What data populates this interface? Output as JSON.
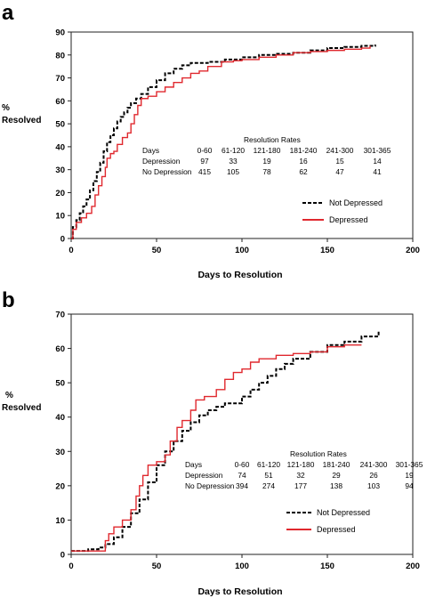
{
  "chart_data": [
    {
      "panel": "a",
      "type": "line",
      "xlabel": "Days to Resolution",
      "ylabel_line1": "%",
      "ylabel_line2": "Resolved",
      "xlim": [
        0,
        200
      ],
      "ylim": [
        0,
        90
      ],
      "xticks": [
        0,
        50,
        100,
        150,
        200
      ],
      "yticks": [
        0,
        10,
        20,
        30,
        40,
        50,
        60,
        70,
        80,
        90
      ],
      "series": [
        {
          "name": "Not Depressed",
          "color": "#000000",
          "dash": "dashed",
          "points": [
            [
              0,
              0
            ],
            [
              1,
              5
            ],
            [
              3,
              8
            ],
            [
              5,
              11
            ],
            [
              7,
              14
            ],
            [
              9,
              17
            ],
            [
              11,
              21
            ],
            [
              13,
              25
            ],
            [
              15,
              29
            ],
            [
              17,
              33
            ],
            [
              19,
              38
            ],
            [
              21,
              42
            ],
            [
              23,
              45
            ],
            [
              25,
              48
            ],
            [
              27,
              51
            ],
            [
              29,
              53
            ],
            [
              31,
              55
            ],
            [
              33,
              57
            ],
            [
              35,
              59
            ],
            [
              38,
              61
            ],
            [
              41,
              63
            ],
            [
              45,
              66
            ],
            [
              50,
              69
            ],
            [
              55,
              72
            ],
            [
              60,
              74
            ],
            [
              65,
              75.5
            ],
            [
              70,
              76.5
            ],
            [
              80,
              77
            ],
            [
              90,
              78
            ],
            [
              100,
              79
            ],
            [
              110,
              80
            ],
            [
              120,
              80.5
            ],
            [
              130,
              81
            ],
            [
              140,
              82
            ],
            [
              150,
              83
            ],
            [
              160,
              83.5
            ],
            [
              170,
              84
            ],
            [
              178,
              84.5
            ]
          ]
        },
        {
          "name": "Depressed",
          "color": "#e0282e",
          "dash": "solid",
          "points": [
            [
              0,
              0
            ],
            [
              1,
              4
            ],
            [
              3,
              7
            ],
            [
              6,
              9
            ],
            [
              9,
              11
            ],
            [
              12,
              14
            ],
            [
              14,
              19
            ],
            [
              16,
              23
            ],
            [
              18,
              27
            ],
            [
              20,
              31
            ],
            [
              21,
              35
            ],
            [
              23,
              37
            ],
            [
              25,
              38
            ],
            [
              27,
              41
            ],
            [
              30,
              44
            ],
            [
              33,
              46
            ],
            [
              35,
              50
            ],
            [
              37,
              54
            ],
            [
              39,
              58
            ],
            [
              41,
              61
            ],
            [
              45,
              62
            ],
            [
              50,
              64
            ],
            [
              55,
              66
            ],
            [
              60,
              68
            ],
            [
              65,
              70
            ],
            [
              70,
              72
            ],
            [
              75,
              73
            ],
            [
              80,
              75
            ],
            [
              88,
              77
            ],
            [
              95,
              77.5
            ],
            [
              100,
              78
            ],
            [
              110,
              79
            ],
            [
              120,
              80
            ],
            [
              130,
              81
            ],
            [
              140,
              81.5
            ],
            [
              150,
              82
            ],
            [
              160,
              82.5
            ],
            [
              170,
              83
            ],
            [
              175,
              84
            ]
          ]
        }
      ],
      "table": {
        "title": "Resolution Rates",
        "header": [
          "Days",
          "0-60",
          "61-120",
          "121-180",
          "181-240",
          "241-300",
          "301-365"
        ],
        "rows": [
          [
            "Depression",
            "97",
            "33",
            "19",
            "16",
            "15",
            "14"
          ],
          [
            "No Depression",
            "415",
            "105",
            "78",
            "62",
            "47",
            "41"
          ]
        ]
      }
    },
    {
      "panel": "b",
      "type": "line",
      "xlabel": "Days to Resolution",
      "ylabel_line1": "%",
      "ylabel_line2": "Resolved",
      "xlim": [
        0,
        200
      ],
      "ylim": [
        0,
        70
      ],
      "xticks": [
        0,
        50,
        100,
        150,
        200
      ],
      "yticks": [
        0,
        10,
        20,
        30,
        40,
        50,
        60,
        70
      ],
      "series": [
        {
          "name": "Not Depressed",
          "color": "#000000",
          "dash": "dashed",
          "points": [
            [
              0,
              1
            ],
            [
              10,
              1.5
            ],
            [
              16,
              2
            ],
            [
              20,
              3
            ],
            [
              25,
              5
            ],
            [
              30,
              8
            ],
            [
              35,
              12
            ],
            [
              40,
              16
            ],
            [
              45,
              21
            ],
            [
              50,
              26
            ],
            [
              55,
              30
            ],
            [
              60,
              33
            ],
            [
              65,
              36
            ],
            [
              70,
              38.5
            ],
            [
              75,
              40.5
            ],
            [
              80,
              42
            ],
            [
              85,
              43
            ],
            [
              90,
              44
            ],
            [
              100,
              46
            ],
            [
              105,
              48
            ],
            [
              110,
              50
            ],
            [
              115,
              52
            ],
            [
              120,
              54
            ],
            [
              125,
              55.5
            ],
            [
              130,
              57
            ],
            [
              140,
              59
            ],
            [
              150,
              61
            ],
            [
              160,
              62
            ],
            [
              170,
              63.5
            ],
            [
              180,
              65
            ]
          ]
        },
        {
          "name": "Depressed",
          "color": "#e0282e",
          "dash": "solid",
          "points": [
            [
              0,
              1
            ],
            [
              18,
              1
            ],
            [
              20,
              4
            ],
            [
              22,
              6
            ],
            [
              25,
              8
            ],
            [
              30,
              10
            ],
            [
              35,
              13
            ],
            [
              38,
              17
            ],
            [
              40,
              20
            ],
            [
              42,
              23
            ],
            [
              45,
              26
            ],
            [
              50,
              27
            ],
            [
              55,
              29
            ],
            [
              58,
              33
            ],
            [
              62,
              37
            ],
            [
              65,
              39
            ],
            [
              70,
              42
            ],
            [
              73,
              45
            ],
            [
              78,
              46
            ],
            [
              85,
              48
            ],
            [
              90,
              51
            ],
            [
              95,
              53
            ],
            [
              100,
              54
            ],
            [
              105,
              56
            ],
            [
              110,
              57
            ],
            [
              120,
              58
            ],
            [
              130,
              58.5
            ],
            [
              140,
              59
            ],
            [
              150,
              60.5
            ],
            [
              160,
              61
            ],
            [
              170,
              61
            ]
          ]
        }
      ],
      "table": {
        "title": "Resolution Rates",
        "header": [
          "Days",
          "0-60",
          "61-120",
          "121-180",
          "181-240",
          "241-300",
          "301-365"
        ],
        "rows": [
          [
            "Depression",
            "74",
            "51",
            "32",
            "29",
            "26",
            "19"
          ],
          [
            "No Depression",
            "394",
            "274",
            "177",
            "138",
            "103",
            "94"
          ]
        ]
      }
    }
  ]
}
